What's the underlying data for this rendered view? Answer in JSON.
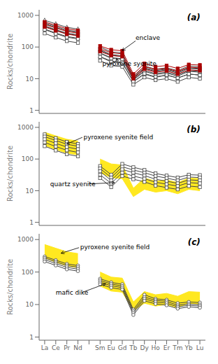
{
  "chart_data": [
    {
      "type": "line",
      "title": "(a)",
      "y_label": "Rocks/chondrite",
      "log": "y",
      "grid": false,
      "tick_labels": "y",
      "categories": [
        "La",
        "Ce",
        "Pr",
        "Nd",
        null,
        "Sm",
        "Eu",
        "Gd",
        "Tb",
        "Dy",
        "Ho",
        "Er",
        "Tm",
        "Yb",
        "Lu"
      ],
      "ylim": [
        0.8,
        1500
      ],
      "yticks": [
        1,
        10,
        100,
        1000
      ],
      "annotations": [
        "enclave",
        "pyroxene syenite"
      ],
      "series": [
        {
          "color": "#444444",
          "marker": "triangle",
          "values": [
            700,
            540,
            420,
            370,
            null,
            100,
            70,
            65,
            12,
            25,
            20,
            22,
            18,
            25,
            24
          ]
        },
        {
          "color": "#444444",
          "marker": "triangle",
          "values": [
            580,
            445,
            345,
            305,
            null,
            82,
            58,
            53,
            10.5,
            21,
            17,
            19,
            15,
            21,
            20
          ]
        },
        {
          "color": "#444444",
          "marker": "triangle",
          "values": [
            470,
            355,
            275,
            245,
            null,
            65,
            46,
            43,
            9,
            17,
            13.5,
            15,
            12,
            17,
            16
          ]
        },
        {
          "color": "#444444",
          "marker": "triangle",
          "values": [
            370,
            278,
            215,
            190,
            null,
            50,
            36,
            33,
            8,
            14,
            11,
            13,
            10.5,
            14,
            13
          ]
        },
        {
          "color": "#444444",
          "marker": "square",
          "values": [
            540,
            415,
            320,
            285,
            null,
            78,
            55,
            50,
            11,
            22,
            18,
            20,
            16,
            22,
            21
          ]
        },
        {
          "color": "#444444",
          "marker": "square",
          "values": [
            450,
            340,
            262,
            232,
            null,
            63,
            44,
            41,
            9.5,
            18,
            14.5,
            16,
            13,
            18,
            17
          ]
        },
        {
          "color": "#444444",
          "marker": "square",
          "values": [
            355,
            265,
            204,
            181,
            null,
            49,
            34,
            32,
            8,
            14.5,
            11.5,
            13,
            10.5,
            14,
            13
          ]
        },
        {
          "color": "#444444",
          "marker": "square",
          "values": [
            270,
            200,
            154,
            136,
            null,
            37,
            26,
            24,
            6.5,
            11,
            9,
            10,
            8,
            11,
            10
          ]
        },
        {
          "color": "#aa0000",
          "marker": "filled_square",
          "values": [
            620,
            485,
            378,
            335,
            null,
            108,
            82,
            76,
            14,
            30,
            24,
            26,
            21,
            28,
            27
          ]
        },
        {
          "color": "#aa0000",
          "marker": "filled_square",
          "values": [
            520,
            400,
            312,
            276,
            null,
            88,
            66,
            61,
            12,
            24,
            19.5,
            21,
            17,
            23,
            22
          ]
        },
        {
          "color": "#aa0000",
          "marker": "filled_square",
          "values": [
            430,
            328,
            255,
            226,
            null,
            72,
            54,
            50,
            10,
            20,
            16,
            17.5,
            14,
            19,
            18
          ]
        }
      ]
    },
    {
      "type": "line",
      "title": "(b)",
      "y_label": "Rocks/chondrite",
      "log": "y",
      "grid": false,
      "tick_labels": "y",
      "categories": [
        "La",
        "Ce",
        "Pr",
        "Nd",
        null,
        "Sm",
        "Eu",
        "Gd",
        "Tb",
        "Dy",
        "Ho",
        "Er",
        "Tm",
        "Yb",
        "Lu"
      ],
      "ylim": [
        0.8,
        1500
      ],
      "yticks": [
        1,
        10,
        100,
        1000
      ],
      "annotations": [
        "pyroxene syenite field",
        "quartz syenite"
      ],
      "series": [
        {
          "type": "range",
          "color": "#FFE820",
          "values": [
            [
              270,
              700
            ],
            [
              200,
              540
            ],
            [
              154,
              420
            ],
            [
              136,
              370
            ],
            null,
            [
              37,
              100
            ],
            [
              26,
              70
            ],
            [
              24,
              65
            ],
            [
              6.5,
              12
            ],
            [
              11,
              25
            ],
            [
              9,
              20
            ],
            [
              10,
              22
            ],
            [
              8,
              18
            ],
            [
              11,
              25
            ],
            [
              10,
              24
            ]
          ]
        },
        {
          "color": "#444444",
          "marker": "square",
          "values": [
            600,
            455,
            348,
            300,
            null,
            60,
            32,
            70,
            55,
            45,
            35,
            30,
            26,
            32,
            31
          ]
        },
        {
          "color": "#444444",
          "marker": "square",
          "values": [
            510,
            385,
            294,
            253,
            null,
            50,
            26,
            57,
            45,
            37,
            29,
            25,
            21,
            27,
            26
          ]
        },
        {
          "color": "#444444",
          "marker": "square",
          "values": [
            420,
            313,
            239,
            205,
            null,
            41,
            21,
            47,
            37,
            30,
            23,
            20,
            17,
            22,
            21
          ]
        },
        {
          "color": "#444444",
          "marker": "square",
          "values": [
            335,
            248,
            189,
            162,
            null,
            32,
            17,
            37,
            29,
            24,
            18.5,
            16,
            14,
            18,
            17
          ]
        },
        {
          "color": "#444444",
          "marker": "square",
          "values": [
            255,
            187,
            142,
            122,
            null,
            25,
            13,
            29,
            23,
            19,
            14.5,
            12.5,
            11,
            14,
            13
          ]
        }
      ]
    },
    {
      "type": "line",
      "title": "(c)",
      "y_label": "Rocks/chondrite",
      "log": "y",
      "grid": false,
      "categories": [
        "La",
        "Ce",
        "Pr",
        "Nd",
        null,
        "Sm",
        "Eu",
        "Gd",
        "Tb",
        "Dy",
        "Ho",
        "Er",
        "Tm",
        "Yb",
        "Lu"
      ],
      "ylim": [
        0.8,
        1500
      ],
      "yticks": [
        1,
        10,
        100,
        1000
      ],
      "annotations": [
        "pyroxene syenite field",
        "mafic dike"
      ],
      "series": [
        {
          "type": "range",
          "color": "#FFE820",
          "values": [
            [
              270,
              700
            ],
            [
              200,
              540
            ],
            [
              154,
              420
            ],
            [
              136,
              370
            ],
            null,
            [
              37,
              100
            ],
            [
              26,
              70
            ],
            [
              24,
              65
            ],
            [
              6.5,
              12
            ],
            [
              11,
              25
            ],
            [
              9,
              20
            ],
            [
              10,
              22
            ],
            [
              8,
              18
            ],
            [
              11,
              25
            ],
            [
              10,
              24
            ]
          ]
        },
        {
          "color": "#444444",
          "marker": "circle",
          "values": [
            300,
            232,
            178,
            158,
            null,
            62,
            48,
            42,
            7,
            20,
            15,
            14,
            11,
            12,
            11.5
          ]
        },
        {
          "color": "#444444",
          "marker": "circle",
          "values": [
            270,
            207,
            158,
            140,
            null,
            55,
            43,
            37,
            6.2,
            17,
            13.5,
            12.5,
            9.5,
            10.5,
            10
          ]
        },
        {
          "color": "#444444",
          "marker": "circle",
          "values": [
            240,
            183,
            139,
            123,
            null,
            48,
            38,
            33,
            5.5,
            15,
            12,
            11,
            8.5,
            9.5,
            9
          ]
        },
        {
          "color": "#444444",
          "marker": "circle",
          "values": [
            210,
            160,
            121,
            107,
            null,
            42,
            33,
            29,
            4.8,
            13,
            10.5,
            9.5,
            7.5,
            8.5,
            8
          ]
        }
      ]
    }
  ]
}
